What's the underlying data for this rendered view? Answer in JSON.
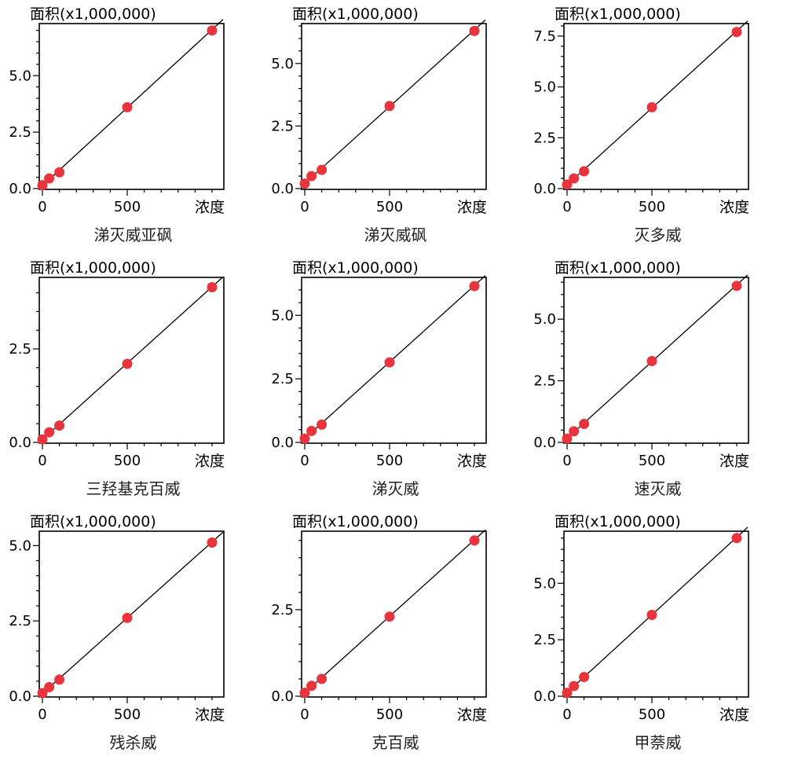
{
  "chart_data": [
    {
      "type": "scatter",
      "title": "涕灭威亚砜",
      "ylabel": "面积(x1,000,000)",
      "xlabel": "浓度",
      "xlim": [
        0,
        1000
      ],
      "ylim": [
        0,
        7.2
      ],
      "xticks": [
        0,
        500
      ],
      "yticks": [
        0.0,
        2.5,
        5.0
      ],
      "ytick_labels": [
        "0.0",
        "2.5",
        "5.0"
      ],
      "xtick_labels": [
        "0",
        "500"
      ],
      "x": [
        0,
        40,
        100,
        500,
        1000
      ],
      "y": [
        0.15,
        0.45,
        0.72,
        3.6,
        7.0
      ],
      "fit_line": true
    },
    {
      "type": "scatter",
      "title": "涕灭威砜",
      "ylabel": "面积(x1,000,000)",
      "xlabel": "浓度",
      "xlim": [
        0,
        1000
      ],
      "ylim": [
        0,
        6.5
      ],
      "xticks": [
        0,
        500
      ],
      "yticks": [
        0.0,
        2.5,
        5.0
      ],
      "ytick_labels": [
        "0.0",
        "2.5",
        "5.0"
      ],
      "xtick_labels": [
        "0",
        "500"
      ],
      "x": [
        0,
        40,
        100,
        500,
        1000
      ],
      "y": [
        0.2,
        0.5,
        0.75,
        3.3,
        6.3
      ],
      "fit_line": true
    },
    {
      "type": "scatter",
      "title": "灭多威",
      "ylabel": "面积(x1,000,000)",
      "xlabel": "浓度",
      "xlim": [
        0,
        1000
      ],
      "ylim": [
        0,
        8.0
      ],
      "xticks": [
        0,
        500
      ],
      "yticks": [
        0.0,
        2.5,
        5.0,
        7.5
      ],
      "ytick_labels": [
        "0.0",
        "2.5",
        "5.0",
        "7.5"
      ],
      "xtick_labels": [
        "0",
        "500"
      ],
      "x": [
        0,
        40,
        100,
        500,
        1000
      ],
      "y": [
        0.2,
        0.5,
        0.85,
        4.0,
        7.7
      ],
      "fit_line": true
    },
    {
      "type": "scatter",
      "title": "三羟基克百威",
      "ylabel": "面积(x1,000,000)",
      "xlabel": "浓度",
      "xlim": [
        0,
        1000
      ],
      "ylim": [
        0,
        4.35
      ],
      "xticks": [
        0,
        500
      ],
      "yticks": [
        0.0,
        2.5
      ],
      "ytick_labels": [
        "0.0",
        "2.5"
      ],
      "xtick_labels": [
        "0",
        "500"
      ],
      "x": [
        0,
        40,
        100,
        500,
        1000
      ],
      "y": [
        0.08,
        0.27,
        0.45,
        2.1,
        4.15
      ],
      "fit_line": true
    },
    {
      "type": "scatter",
      "title": "涕灭威",
      "ylabel": "面积(x1,000,000)",
      "xlabel": "浓度",
      "xlim": [
        0,
        1000
      ],
      "ylim": [
        0,
        6.4
      ],
      "xticks": [
        0,
        500
      ],
      "yticks": [
        0.0,
        2.5,
        5.0
      ],
      "ytick_labels": [
        "0.0",
        "2.5",
        "5.0"
      ],
      "xtick_labels": [
        "0",
        "500"
      ],
      "x": [
        0,
        40,
        100,
        500,
        1000
      ],
      "y": [
        0.15,
        0.45,
        0.7,
        3.15,
        6.15
      ],
      "fit_line": true
    },
    {
      "type": "scatter",
      "title": "速灭威",
      "ylabel": "面积(x1,000,000)",
      "xlabel": "浓度",
      "xlim": [
        0,
        1000
      ],
      "ylim": [
        0,
        6.6
      ],
      "xticks": [
        0,
        500
      ],
      "yticks": [
        0.0,
        2.5,
        5.0
      ],
      "ytick_labels": [
        "0.0",
        "2.5",
        "5.0"
      ],
      "xtick_labels": [
        "0",
        "500"
      ],
      "x": [
        0,
        40,
        100,
        500,
        1000
      ],
      "y": [
        0.15,
        0.45,
        0.75,
        3.3,
        6.35
      ],
      "fit_line": true
    },
    {
      "type": "scatter",
      "title": "残杀威",
      "ylabel": "面积(x1,000,000)",
      "xlabel": "浓度",
      "xlim": [
        0,
        1000
      ],
      "ylim": [
        0,
        5.4
      ],
      "xticks": [
        0,
        500
      ],
      "yticks": [
        0.0,
        2.5,
        5.0
      ],
      "ytick_labels": [
        "0.0",
        "2.5",
        "5.0"
      ],
      "xtick_labels": [
        "0",
        "500"
      ],
      "x": [
        0,
        40,
        100,
        500,
        1000
      ],
      "y": [
        0.1,
        0.3,
        0.55,
        2.6,
        5.1
      ],
      "fit_line": true
    },
    {
      "type": "scatter",
      "title": "克百威",
      "ylabel": "面积(x1,000,000)",
      "xlabel": "浓度",
      "xlim": [
        0,
        1000
      ],
      "ylim": [
        0,
        4.7
      ],
      "xticks": [
        0,
        500
      ],
      "yticks": [
        0.0,
        2.5
      ],
      "ytick_labels": [
        "0.0",
        "2.5"
      ],
      "xtick_labels": [
        "0",
        "500"
      ],
      "x": [
        0,
        40,
        100,
        500,
        1000
      ],
      "y": [
        0.1,
        0.3,
        0.5,
        2.3,
        4.5
      ],
      "fit_line": true
    },
    {
      "type": "scatter",
      "title": "甲萘威",
      "ylabel": "面积(x1,000,000)",
      "xlabel": "浓度",
      "xlim": [
        0,
        1000
      ],
      "ylim": [
        0,
        7.2
      ],
      "xticks": [
        0,
        500
      ],
      "yticks": [
        0.0,
        2.5,
        5.0
      ],
      "ytick_labels": [
        "0.0",
        "2.5",
        "5.0"
      ],
      "xtick_labels": [
        "0",
        "500"
      ],
      "x": [
        0,
        40,
        100,
        500,
        1000
      ],
      "y": [
        0.15,
        0.45,
        0.85,
        3.6,
        7.0
      ],
      "fit_line": true
    }
  ],
  "colors": {
    "point": "#e8343c",
    "line": "#000000",
    "axis": "#000000"
  }
}
